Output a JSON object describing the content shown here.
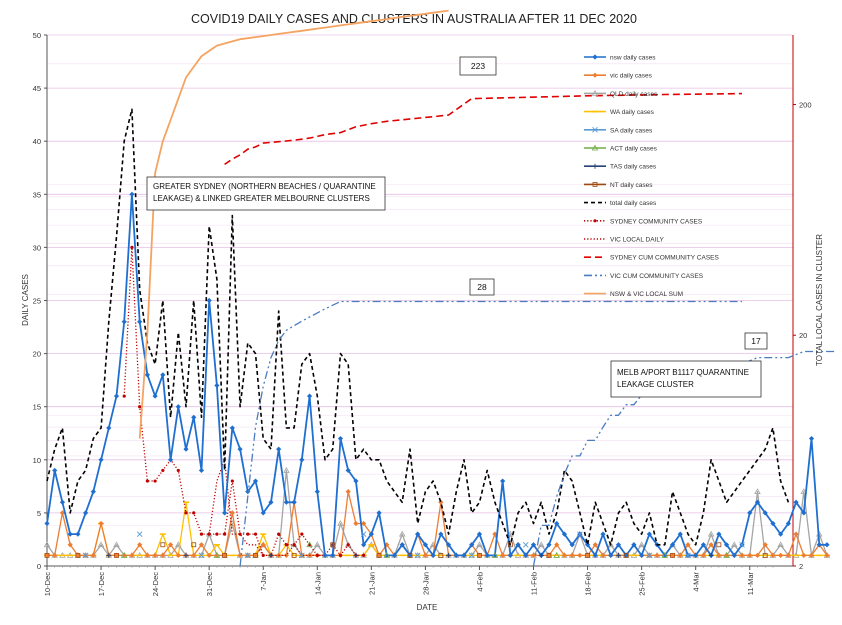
{
  "chart_data": {
    "type": "line",
    "title": "COVID19 DAILY CASES AND CLUSTERS IN AUSTRALIA AFTER 11 DEC 2020",
    "xlabel": "DATE",
    "ylabel": "DAILY CASES",
    "y2label": "TOTAL LOCAL CASES IN CLUSTER",
    "x_start": "2020-12-10",
    "x_tick_labels": [
      "10-Dec",
      "17-Dec",
      "24-Dec",
      "31-Dec",
      "7-Jan",
      "14-Jan",
      "21-Jan",
      "28-Jan",
      "4-Feb",
      "11-Feb",
      "18-Feb",
      "25-Feb",
      "4-Mar",
      "11-Mar"
    ],
    "ylim": [
      0,
      50
    ],
    "y_ticks": [
      0,
      5,
      10,
      15,
      20,
      25,
      30,
      35,
      40,
      45,
      50
    ],
    "y2_scale": "log",
    "y2lim": [
      2,
      400
    ],
    "y2_ticks": [
      2,
      20,
      200
    ],
    "grid": "horizontal",
    "legend_position": "right",
    "legend": [
      {
        "label": "nsw daily cases",
        "color": "#1f6fd1",
        "style": "solid",
        "marker": "diamond"
      },
      {
        "label": "vic daily cases",
        "color": "#ed7d31",
        "style": "solid",
        "marker": "diamond"
      },
      {
        "label": "QLD daily cases",
        "color": "#a5a5a5",
        "style": "solid",
        "marker": "triangle"
      },
      {
        "label": "WA  daily cases",
        "color": "#ffc000",
        "style": "solid",
        "marker": "dash"
      },
      {
        "label": "SA  daily cases",
        "color": "#5b9bd5",
        "style": "solid",
        "marker": "x"
      },
      {
        "label": "ACT daily cases",
        "color": "#70ad47",
        "style": "solid",
        "marker": "triangle"
      },
      {
        "label": "TAS daily cases",
        "color": "#264478",
        "style": "solid",
        "marker": "plus"
      },
      {
        "label": "NT  daily cases",
        "color": "#9e480e",
        "style": "solid",
        "marker": "square"
      },
      {
        "label": "total daily cases",
        "color": "#000000",
        "style": "dashed",
        "marker": "none"
      },
      {
        "label": "SYDNEY COMMUNITY CASES",
        "color": "#c00000",
        "style": "dotted",
        "marker": "dot"
      },
      {
        "label": "VIC LOCAL DAILY",
        "color": "#c00000",
        "style": "dotted",
        "marker": "none"
      },
      {
        "label": "SYDNEY CUM COMMUNITY CASES",
        "color": "#e00000",
        "style": "longdash",
        "marker": "none"
      },
      {
        "label": "VIC CUM COMMUNITY CASES",
        "color": "#4a7cc0",
        "style": "dashdot",
        "marker": "none"
      },
      {
        "label": "NSW & VIC LOCAL SUM",
        "color": "#f4a460",
        "style": "solid",
        "marker": "none"
      }
    ],
    "annotations": [
      {
        "text": "GREATER  SYDNEY (NORTHERN BEACHES / QUARANTINE LEAKAGE) &  LINKED GREATER MELBOURNE CLUSTERS"
      },
      {
        "text": "MELB A/PORT B1117 QUARANTINE LEAKAGE  CLUSTER"
      }
    ],
    "badges": [
      {
        "text": "223"
      },
      {
        "text": "28"
      },
      {
        "text": "17"
      }
    ],
    "series": [
      {
        "key": "nsw",
        "values": [
          4,
          9,
          6,
          3,
          3,
          5,
          7,
          10,
          13,
          16,
          23,
          35,
          23,
          18,
          16,
          18,
          10,
          15,
          11,
          14,
          9,
          25,
          17,
          5,
          13,
          11,
          7,
          8,
          5,
          6,
          11,
          6,
          6,
          10,
          16,
          7,
          1,
          1,
          12,
          9,
          8,
          2,
          3,
          5,
          1,
          1,
          2,
          1,
          3,
          2,
          1,
          3,
          2,
          1,
          1,
          2,
          3,
          1,
          1,
          8,
          1,
          2,
          1,
          2,
          1,
          2,
          4,
          3,
          2,
          3,
          2,
          1,
          3,
          1,
          2,
          1,
          2,
          1,
          3,
          2,
          1,
          2,
          3,
          1,
          1,
          2,
          1,
          3,
          2,
          1,
          2,
          5,
          6,
          5,
          4,
          3,
          4,
          6,
          5,
          12,
          2,
          2
        ]
      },
      {
        "key": "vic",
        "values": [
          1,
          1,
          5,
          2,
          1,
          1,
          1,
          4,
          1,
          1,
          1,
          1,
          2,
          1,
          1,
          1,
          2,
          1,
          1,
          1,
          2,
          1,
          1,
          1,
          5,
          1,
          1,
          1,
          2,
          1,
          1,
          1,
          6,
          1,
          1,
          1,
          1,
          1,
          1,
          7,
          4,
          4,
          3,
          1,
          2,
          1,
          2,
          1,
          3,
          1,
          1,
          6,
          1,
          1,
          1,
          2,
          1,
          1,
          3,
          1,
          1,
          2,
          1,
          1,
          1,
          1,
          2,
          1,
          1,
          1,
          1,
          2,
          1,
          1,
          1,
          1,
          2,
          1,
          1,
          1,
          1,
          1,
          1,
          2,
          1,
          1,
          2,
          1,
          1,
          1,
          1,
          1,
          1,
          2,
          1,
          1,
          1,
          3,
          1,
          1,
          2,
          1
        ]
      },
      {
        "key": "qld",
        "values": [
          2,
          1,
          1,
          1,
          1,
          1,
          1,
          2,
          1,
          2,
          1,
          1,
          1,
          1,
          1,
          1,
          1,
          2,
          1,
          1,
          1,
          3,
          1,
          1,
          4,
          1,
          1,
          1,
          2,
          1,
          1,
          9,
          2,
          1,
          1,
          2,
          1,
          1,
          4,
          2,
          1,
          1,
          2,
          1,
          1,
          1,
          3,
          1,
          1,
          1,
          2,
          1,
          1,
          1,
          1,
          1,
          2,
          1,
          1,
          1,
          3,
          1,
          1,
          1,
          2,
          1,
          1,
          1,
          1,
          3,
          1,
          1,
          1,
          2,
          1,
          1,
          1,
          2,
          1,
          1,
          1,
          2,
          1,
          1,
          1,
          1,
          3,
          1,
          1,
          2,
          1,
          1,
          7,
          1,
          1,
          2,
          1,
          1,
          7,
          1,
          3,
          1
        ]
      },
      {
        "key": "wa",
        "values": [
          1,
          1,
          1,
          1,
          1,
          1,
          1,
          4,
          1,
          1,
          1,
          1,
          1,
          1,
          1,
          3,
          1,
          1,
          6,
          1,
          1,
          1,
          2,
          1,
          1,
          1,
          1,
          1,
          3,
          1,
          1,
          2,
          1,
          1,
          1,
          1,
          1,
          1,
          1,
          1,
          1,
          1,
          2,
          1,
          1,
          1,
          1,
          1,
          1,
          1,
          1,
          1,
          1,
          1,
          1,
          1,
          1,
          1,
          1,
          1,
          1,
          1,
          1,
          1,
          1,
          1,
          1,
          1,
          1,
          1,
          1,
          1,
          1,
          1,
          1,
          1,
          1,
          1,
          1,
          1,
          1,
          1,
          1,
          1,
          1,
          1,
          1,
          1,
          1,
          1,
          1,
          1,
          1,
          1,
          1,
          1,
          1,
          1,
          1,
          1,
          1,
          1
        ]
      },
      {
        "key": "total",
        "values": [
          8,
          11,
          13,
          5,
          8,
          9,
          12,
          13,
          23,
          31,
          40,
          43,
          26,
          21,
          19,
          25,
          14,
          22,
          15,
          25,
          14,
          32,
          27,
          9,
          33,
          15,
          21,
          20,
          12,
          11,
          24,
          13,
          13,
          19,
          20,
          16,
          10,
          11,
          20,
          19,
          10,
          11,
          10,
          10,
          8,
          7,
          6,
          11,
          4,
          7,
          8,
          6,
          3,
          7,
          10,
          5,
          6,
          9,
          6,
          4,
          2,
          5,
          6,
          4,
          6,
          3,
          5,
          9,
          8,
          5,
          2,
          6,
          4,
          2,
          5,
          6,
          4,
          3,
          5,
          2,
          2,
          7,
          5,
          3,
          2,
          5,
          10,
          8,
          6,
          7,
          8,
          9,
          10,
          11,
          13,
          8,
          6
        ]
      },
      {
        "key": "sydney_community",
        "values": [
          0,
          0,
          0,
          0,
          0,
          0,
          0,
          0,
          0,
          0,
          16,
          30,
          15,
          8,
          8,
          9,
          10,
          9,
          5,
          5,
          3,
          3,
          3,
          3,
          8,
          3,
          3,
          3,
          1,
          1,
          3,
          2,
          2,
          3,
          2,
          1,
          1,
          2,
          1,
          2,
          1,
          1,
          0,
          0
        ]
      },
      {
        "key": "vic_local_daily",
        "values": [
          0,
          0,
          0,
          0,
          0,
          0,
          0,
          0,
          0,
          0,
          0,
          0,
          0,
          0,
          0,
          0,
          0,
          0,
          0,
          0,
          0,
          3,
          8,
          10,
          3,
          3,
          2,
          2,
          1,
          1,
          1,
          1,
          2,
          1,
          1,
          1,
          1,
          0,
          0,
          0,
          0,
          0,
          0,
          0,
          0,
          0,
          0,
          0,
          0,
          0,
          0,
          0,
          0,
          0,
          0,
          0,
          0,
          0,
          0,
          0,
          0,
          0,
          0,
          0,
          0,
          0,
          0,
          0,
          0,
          0,
          0,
          0,
          0,
          0,
          0,
          0,
          0,
          0,
          0,
          0,
          0,
          0,
          0,
          0,
          0,
          0,
          0,
          0,
          0,
          0,
          0,
          0,
          0,
          0,
          0,
          0,
          0
        ]
      },
      {
        "key": "sydney_cum",
        "days": [
          23,
          24,
          25,
          26,
          27,
          28,
          30,
          32,
          34,
          36,
          38,
          40,
          42,
          44,
          50,
          52,
          55,
          60,
          70,
          80,
          90
        ],
        "values": [
          110,
          116,
          121,
          128,
          131,
          136,
          138,
          140,
          143,
          148,
          151,
          160,
          165,
          169,
          177,
          180,
          212,
          214,
          218,
          221,
          223
        ]
      },
      {
        "key": "vic_cum",
        "days": [
          25,
          26,
          27,
          28,
          29,
          30,
          31,
          32,
          33,
          34,
          35,
          36,
          37,
          38,
          39,
          40,
          42,
          44,
          50,
          55,
          60,
          65,
          70,
          75,
          80,
          85,
          90
        ],
        "values": [
          2,
          4,
          8,
          12,
          16,
          19,
          21,
          22,
          23,
          24,
          25,
          26,
          27,
          28,
          28,
          28,
          28,
          28,
          28,
          28,
          28,
          28,
          28,
          28,
          28,
          28,
          28
        ]
      },
      {
        "key": "melb_cum",
        "days": [
          63,
          64,
          65,
          66,
          67,
          68,
          69,
          70,
          71,
          72,
          73,
          74,
          75,
          76,
          77,
          78,
          80,
          82,
          84,
          86,
          88,
          90,
          92,
          94,
          96,
          98,
          100,
          102
        ],
        "values": [
          2,
          3,
          3,
          4,
          5,
          6,
          6,
          7,
          7,
          8,
          9,
          9,
          10,
          10,
          11,
          11,
          12,
          13,
          14,
          15,
          15,
          15,
          16,
          16,
          16,
          17,
          17,
          17
        ]
      },
      {
        "key": "sum",
        "values": [
          0,
          0,
          0,
          0,
          0,
          0,
          0,
          0,
          0,
          0,
          0,
          0,
          12,
          22,
          37,
          40,
          42,
          44,
          46,
          47,
          48,
          48.5,
          49,
          49.2,
          49.4,
          49.6,
          49.7,
          49.8,
          49.9,
          50,
          50.1,
          50.2,
          50.3,
          50.4,
          50.5,
          50.6,
          50.7,
          50.8,
          50.9,
          51,
          51.1,
          51.2,
          51.3,
          51.4,
          51.5,
          51.6,
          51.7,
          51.8,
          51.9,
          52,
          52.1,
          52.2,
          52.3
        ]
      }
    ]
  }
}
